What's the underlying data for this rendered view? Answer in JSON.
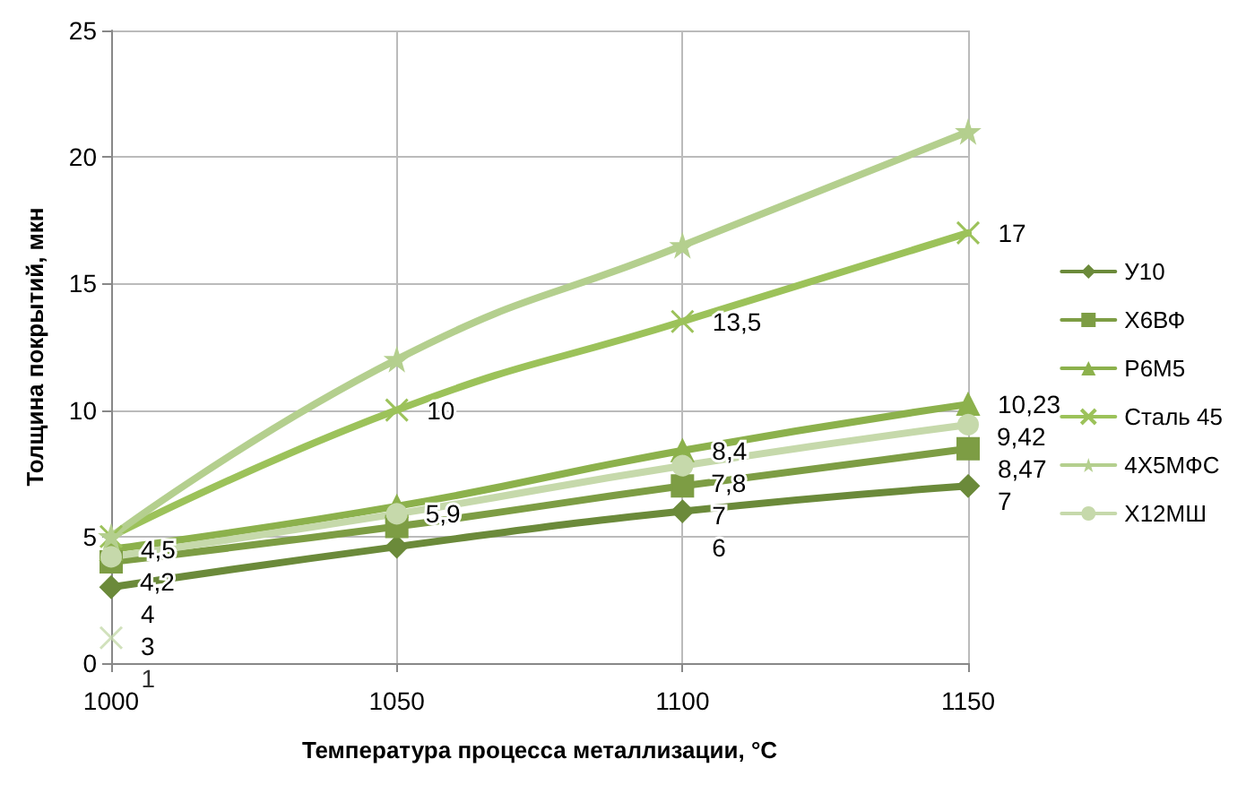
{
  "chart_data": {
    "type": "line",
    "xlabel": "Температура процесса металлизации, °С",
    "ylabel": "Толщина покрытий, мкн",
    "x": [
      1000,
      1050,
      1100,
      1150
    ],
    "xlim": [
      1000,
      1150
    ],
    "xticks": [
      1000,
      1050,
      1100,
      1150
    ],
    "ylim": [
      0,
      25
    ],
    "yticks": [
      0,
      5,
      10,
      15,
      20,
      25
    ],
    "grid": true,
    "legend": "right",
    "line_style": "solid",
    "series": [
      {
        "name": "У10",
        "color": "#6b8a3a",
        "marker": "diamond",
        "values": [
          3,
          4.6,
          6,
          7
        ],
        "value_labels": [
          "3",
          null,
          "6",
          "7"
        ]
      },
      {
        "name": "Х6ВФ",
        "color": "#7d9d44",
        "marker": "square",
        "values": [
          4,
          5.4,
          7,
          8.47
        ],
        "value_labels": [
          "4",
          null,
          "7",
          "8,47"
        ]
      },
      {
        "name": "Р6М5",
        "color": "#8cb14c",
        "marker": "triangle",
        "values": [
          4.5,
          6.2,
          8.4,
          10.23
        ],
        "value_labels": [
          "4,5",
          null,
          "8,4",
          "10,23"
        ]
      },
      {
        "name": "Сталь 45",
        "color": "#9cc25a",
        "marker": "cross",
        "values": [
          5,
          10,
          13.5,
          17
        ],
        "value_labels": [
          null,
          "10",
          "13,5",
          "17"
        ]
      },
      {
        "name": "4Х5МФС",
        "color": "#b4cf8e",
        "marker": "star",
        "values": [
          5,
          12,
          16.5,
          21
        ],
        "value_labels": [
          null,
          null,
          null,
          null
        ]
      },
      {
        "name": "Х12МШ",
        "color": "#c6d9ab",
        "marker": "circle",
        "values": [
          4.2,
          5.9,
          7.8,
          9.42
        ],
        "value_labels": [
          "4,2",
          "5,9",
          "7,8",
          "9,42"
        ]
      },
      {
        "type": "scatter",
        "color": "#c6d9ab",
        "marker": "cross",
        "x": [
          1000
        ],
        "values": [
          1
        ],
        "value_labels": [
          "1"
        ]
      }
    ]
  }
}
